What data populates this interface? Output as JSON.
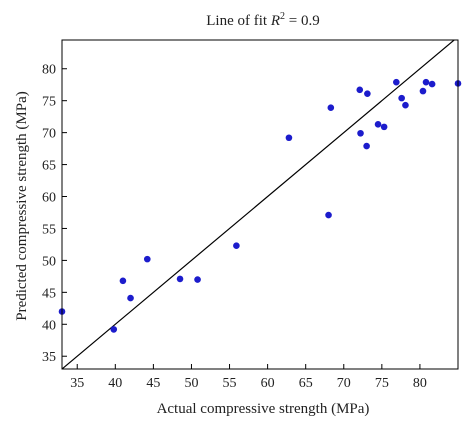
{
  "chart_data": {
    "type": "scatter",
    "title_prefix": "Line of fit ",
    "title_var": "R",
    "title_sup": "2",
    "title_suffix": " = 0.9",
    "xlabel": "Actual compressive strength (MPa)",
    "ylabel": "Predicted compressive strength (MPa)",
    "xlim": [
      33,
      85
    ],
    "ylim": [
      33,
      84.5
    ],
    "x_ticks": [
      35,
      40,
      45,
      50,
      55,
      60,
      65,
      70,
      75,
      80
    ],
    "y_ticks": [
      35,
      40,
      45,
      50,
      55,
      60,
      65,
      70,
      75,
      80
    ],
    "grid": false,
    "point_color": "#1c1ccc",
    "line_color": "#000000",
    "fit_line": {
      "x": [
        33,
        85
      ],
      "y": [
        33,
        85
      ]
    },
    "points": [
      {
        "x": 33.0,
        "y": 42.0
      },
      {
        "x": 39.8,
        "y": 39.2
      },
      {
        "x": 41.0,
        "y": 46.8
      },
      {
        "x": 42.0,
        "y": 44.1
      },
      {
        "x": 44.2,
        "y": 50.2
      },
      {
        "x": 48.5,
        "y": 47.1
      },
      {
        "x": 50.8,
        "y": 47.0
      },
      {
        "x": 55.9,
        "y": 52.3
      },
      {
        "x": 62.8,
        "y": 69.2
      },
      {
        "x": 68.0,
        "y": 57.1
      },
      {
        "x": 68.3,
        "y": 73.9
      },
      {
        "x": 72.1,
        "y": 76.7
      },
      {
        "x": 72.2,
        "y": 69.9
      },
      {
        "x": 73.0,
        "y": 67.9
      },
      {
        "x": 73.1,
        "y": 76.1
      },
      {
        "x": 74.5,
        "y": 71.3
      },
      {
        "x": 75.3,
        "y": 70.9
      },
      {
        "x": 76.9,
        "y": 77.9
      },
      {
        "x": 77.6,
        "y": 75.4
      },
      {
        "x": 78.1,
        "y": 74.3
      },
      {
        "x": 80.4,
        "y": 76.5
      },
      {
        "x": 80.8,
        "y": 77.9
      },
      {
        "x": 81.6,
        "y": 77.6
      },
      {
        "x": 85.0,
        "y": 77.7
      }
    ]
  }
}
